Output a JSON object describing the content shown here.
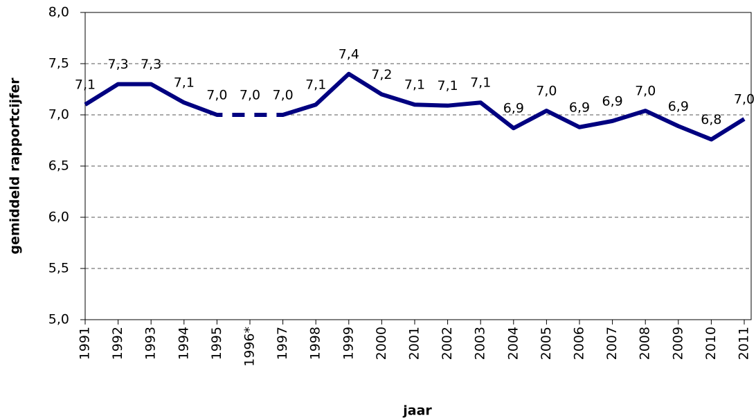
{
  "chart_data": {
    "type": "line",
    "x_label": "jaar",
    "y_label": "gemiddeld rapportcijfer",
    "categories": [
      "1991",
      "1992",
      "1993",
      "1994",
      "1995",
      "1996*",
      "1997",
      "1998",
      "1999",
      "2000",
      "2001",
      "2002",
      "2003",
      "2004",
      "2005",
      "2006",
      "2007",
      "2008",
      "2009",
      "2010",
      "2011"
    ],
    "series": [
      {
        "color": "#000080",
        "values": [
          7.1,
          7.3,
          7.3,
          7.12,
          7.0,
          7.0,
          7.0,
          7.1,
          7.4,
          7.2,
          7.1,
          7.09,
          7.12,
          6.87,
          7.04,
          6.88,
          6.94,
          7.04,
          6.89,
          6.76,
          6.96
        ],
        "value_labels": [
          "7,1",
          "7,3",
          "7,3",
          "7,1",
          "7,0",
          "7,0",
          "7,0",
          "7,1",
          "7,4",
          "7,2",
          "7,1",
          "7,1",
          "7,1",
          "6,9",
          "7,0",
          "6,9",
          "6,9",
          "7,0",
          "6,9",
          "6,8",
          "7,0"
        ],
        "dashed_between": [
          "1995",
          "1997"
        ]
      }
    ],
    "ylim": [
      5,
      8
    ],
    "yticks": [
      {
        "value": 5,
        "label": "5,0"
      },
      {
        "value": 5.5,
        "label": "5,5"
      },
      {
        "value": 6,
        "label": "6,0"
      },
      {
        "value": 6.5,
        "label": "6,5"
      },
      {
        "value": 7,
        "label": "7,0"
      },
      {
        "value": 7.5,
        "label": "7,5"
      },
      {
        "value": 8,
        "label": "8,0"
      }
    ],
    "grid": true
  }
}
